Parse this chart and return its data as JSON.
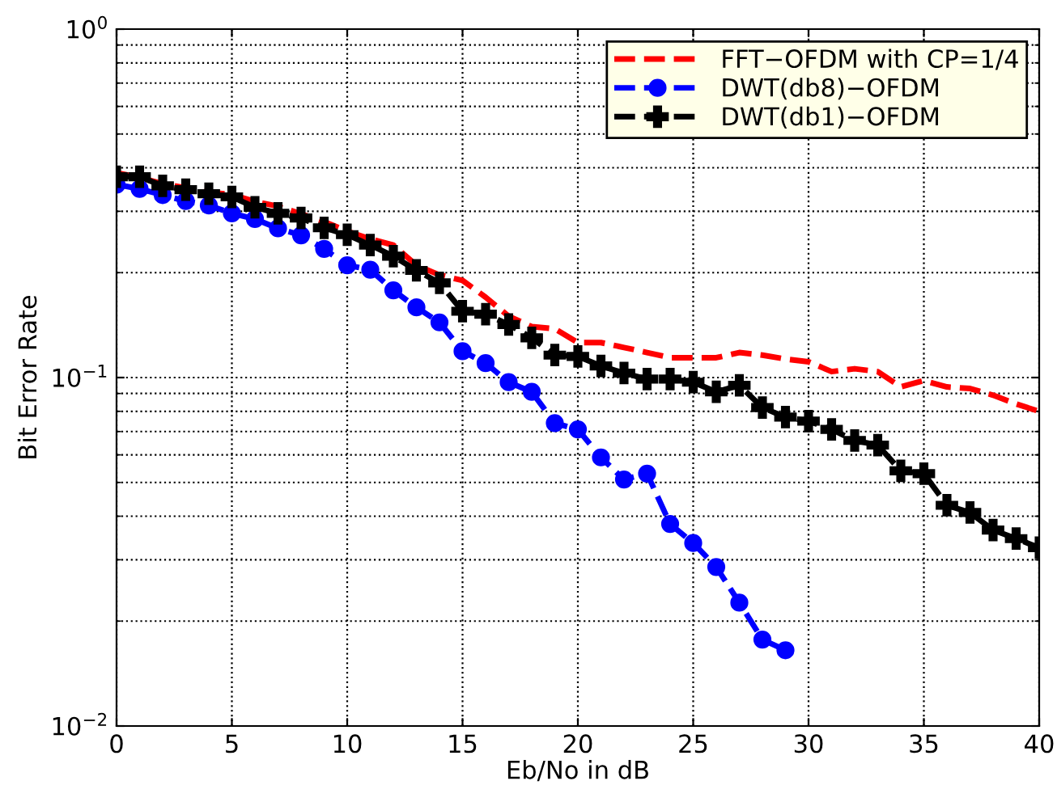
{
  "chart_data": {
    "type": "line",
    "xlabel": "Eb/No in dB",
    "ylabel": "Bit Error Rate",
    "x": [
      0,
      1,
      2,
      3,
      4,
      5,
      6,
      7,
      8,
      9,
      10,
      11,
      12,
      13,
      14,
      15,
      16,
      17,
      18,
      19,
      20,
      21,
      22,
      23,
      24,
      25,
      26,
      27,
      28,
      29,
      30,
      31,
      32,
      33,
      34,
      35,
      36,
      37,
      38,
      39,
      40
    ],
    "series": [
      {
        "name": "FFT−OFDM with CP=1/4",
        "color": "#ff0000",
        "marker": "none",
        "line_style": "dashed",
        "values": [
          0.387,
          0.375,
          0.36,
          0.35,
          0.34,
          0.335,
          0.32,
          0.31,
          0.295,
          0.28,
          0.263,
          0.25,
          0.24,
          0.21,
          0.197,
          0.19,
          0.17,
          0.15,
          0.14,
          0.138,
          0.126,
          0.126,
          0.122,
          0.118,
          0.114,
          0.114,
          0.114,
          0.118,
          0.116,
          0.113,
          0.111,
          0.104,
          0.106,
          0.104,
          0.094,
          0.098,
          0.094,
          0.093,
          0.089,
          0.084,
          0.08
        ]
      },
      {
        "name": "DWT(db8)−OFDM",
        "color": "#0000ff",
        "marker": "circle",
        "line_style": "dashed",
        "x": [
          0,
          1,
          2,
          3,
          4,
          5,
          6,
          7,
          8,
          9,
          10,
          11,
          12,
          13,
          14,
          15,
          16,
          17,
          18,
          19,
          20,
          21,
          22,
          23,
          24,
          25,
          26,
          27,
          28,
          29
        ],
        "values": [
          0.358,
          0.348,
          0.334,
          0.321,
          0.312,
          0.296,
          0.285,
          0.268,
          0.256,
          0.234,
          0.21,
          0.204,
          0.178,
          0.159,
          0.144,
          0.119,
          0.11,
          0.097,
          0.091,
          0.074,
          0.071,
          0.059,
          0.051,
          0.053,
          0.038,
          0.0335,
          0.0286,
          0.0226,
          0.0177,
          0.0165
        ]
      },
      {
        "name": "DWT(db1)−OFDM",
        "color": "#000000",
        "marker": "cross",
        "line_style": "dashed",
        "values": [
          0.377,
          0.377,
          0.355,
          0.346,
          0.337,
          0.33,
          0.308,
          0.296,
          0.287,
          0.269,
          0.257,
          0.24,
          0.223,
          0.203,
          0.187,
          0.155,
          0.152,
          0.142,
          0.13,
          0.116,
          0.115,
          0.108,
          0.103,
          0.099,
          0.099,
          0.097,
          0.091,
          0.095,
          0.082,
          0.077,
          0.075,
          0.071,
          0.066,
          0.064,
          0.054,
          0.053,
          0.043,
          0.041,
          0.0365,
          0.0345,
          0.0325
        ]
      }
    ],
    "xlim": [
      0,
      40
    ],
    "xticks": [
      0,
      5,
      10,
      15,
      20,
      25,
      30,
      35,
      40
    ],
    "log": "y",
    "ylim": [
      0.01,
      1
    ],
    "yticks": [
      {
        "value": 0.01,
        "label": "10$^{−2}$"
      },
      {
        "value": 0.1,
        "label": "10$^{−1}$"
      },
      {
        "value": 1,
        "label": "10$^{0}$"
      }
    ],
    "grid": true,
    "legend": "top right"
  }
}
